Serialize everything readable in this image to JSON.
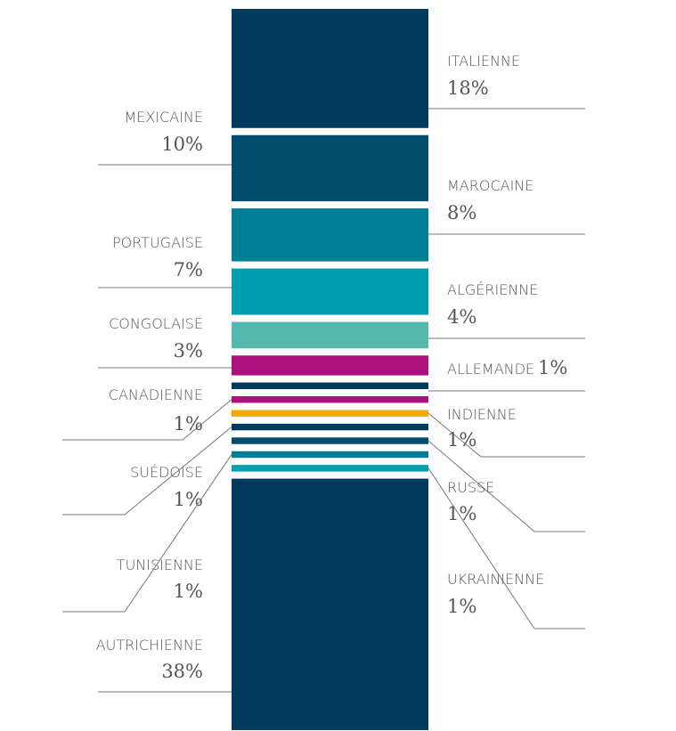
{
  "chart_data": {
    "type": "stacked-column",
    "categories": [
      "ITALIENNE",
      "MEXICAINE",
      "MAROCAINE",
      "PORTUGAISE",
      "ALGÉRIENNE",
      "CONGOLAISE",
      "ALLEMANDE",
      "CANADIENNE",
      "INDIENNE",
      "SUÉDOISE",
      "RUSSE",
      "TUNISIENNE",
      "UKRAINIENNE",
      "AUTRICHIENNE"
    ],
    "values": [
      18,
      10,
      8,
      7,
      4,
      3,
      1,
      1,
      1,
      1,
      1,
      1,
      1,
      38
    ],
    "value_labels": [
      "18%",
      "10%",
      "8%",
      "7%",
      "4%",
      "3%",
      "1%",
      "1%",
      "1%",
      "1%",
      "1%",
      "1%",
      "1%",
      "38%"
    ],
    "colors": [
      "#003a5c",
      "#004d6e",
      "#007e96",
      "#009fb0",
      "#55b9b0",
      "#ad1180",
      "#003a5c",
      "#ad1180",
      "#f5a800",
      "#003a5c",
      "#004d6e",
      "#007e96",
      "#009fb0",
      "#003a5c"
    ]
  }
}
